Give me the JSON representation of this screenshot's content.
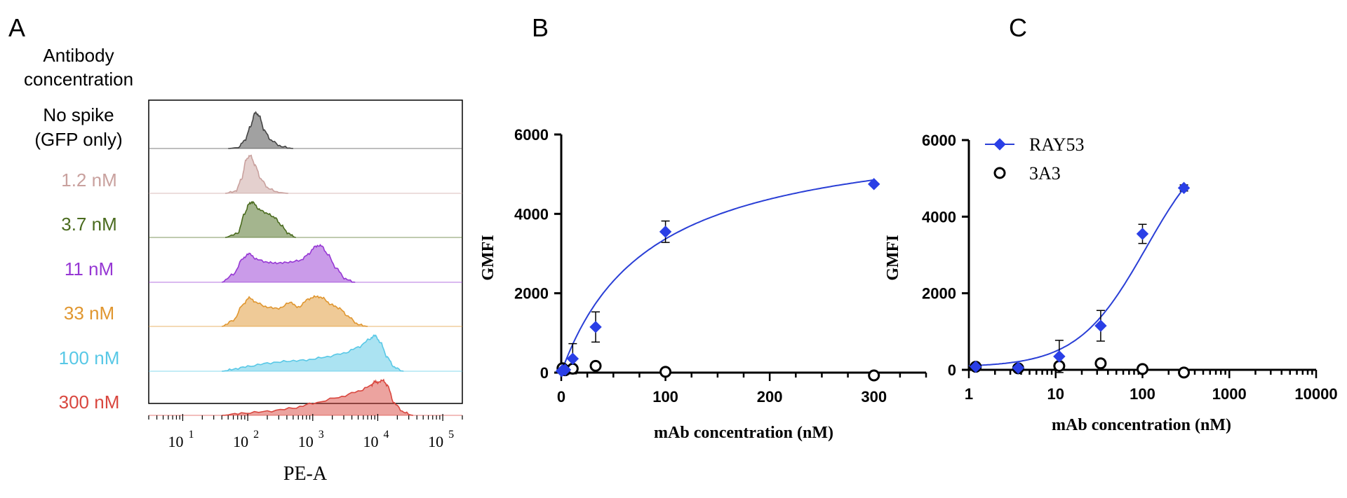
{
  "panel_labels": {
    "a": "A",
    "b": "B",
    "c": "C"
  },
  "colors": {
    "gfp": "#444444",
    "c1_2": "#c9a19e",
    "c3_7": "#4a6b1e",
    "c11": "#9637d4",
    "c33": "#e0962f",
    "c100": "#58c8e6",
    "c300": "#d9473f",
    "ray53": "#2a3fe6",
    "fit": "#2a3fd6",
    "axis": "#000000"
  },
  "chart_data": [
    {
      "panel": "A",
      "type": "area",
      "title": "",
      "row_header": "Antibody concentration",
      "xlabel": "PE-A",
      "x_scale": "log",
      "xlim": [
        3,
        200000
      ],
      "x_tick_labels": [
        {
          "base": "10",
          "exp": "1"
        },
        {
          "base": "10",
          "exp": "2"
        },
        {
          "base": "10",
          "exp": "3"
        },
        {
          "base": "10",
          "exp": "4"
        },
        {
          "base": "10",
          "exp": "5"
        }
      ],
      "series": [
        {
          "name": "No spike (GFP only)",
          "color_key": "gfp",
          "points": [
            [
              50,
              0
            ],
            [
              70,
              0.02
            ],
            [
              90,
              0.2
            ],
            [
              110,
              0.55
            ],
            [
              130,
              0.9
            ],
            [
              150,
              0.82
            ],
            [
              180,
              0.45
            ],
            [
              230,
              0.2
            ],
            [
              330,
              0.05
            ],
            [
              500,
              0
            ]
          ]
        },
        {
          "name": "1.2 nM",
          "color_key": "c1_2",
          "points": [
            [
              45,
              0
            ],
            [
              65,
              0.05
            ],
            [
              80,
              0.35
            ],
            [
              95,
              0.85
            ],
            [
              110,
              0.95
            ],
            [
              130,
              0.7
            ],
            [
              160,
              0.35
            ],
            [
              210,
              0.12
            ],
            [
              300,
              0.02
            ],
            [
              420,
              0
            ]
          ]
        },
        {
          "name": "3.7 nM",
          "color_key": "c3_7",
          "points": [
            [
              45,
              0
            ],
            [
              70,
              0.1
            ],
            [
              90,
              0.6
            ],
            [
              105,
              0.85
            ],
            [
              120,
              0.88
            ],
            [
              150,
              0.7
            ],
            [
              200,
              0.6
            ],
            [
              260,
              0.5
            ],
            [
              330,
              0.3
            ],
            [
              420,
              0.1
            ],
            [
              550,
              0
            ]
          ]
        },
        {
          "name": "11 nM",
          "color_key": "c11",
          "points": [
            [
              40,
              0
            ],
            [
              60,
              0.2
            ],
            [
              85,
              0.6
            ],
            [
              105,
              0.72
            ],
            [
              135,
              0.58
            ],
            [
              200,
              0.5
            ],
            [
              280,
              0.48
            ],
            [
              420,
              0.5
            ],
            [
              650,
              0.55
            ],
            [
              850,
              0.7
            ],
            [
              1100,
              0.9
            ],
            [
              1350,
              0.92
            ],
            [
              1700,
              0.7
            ],
            [
              2300,
              0.35
            ],
            [
              3200,
              0.08
            ],
            [
              4500,
              0
            ]
          ]
        },
        {
          "name": "33 nM",
          "color_key": "c33",
          "points": [
            [
              40,
              0
            ],
            [
              60,
              0.15
            ],
            [
              85,
              0.55
            ],
            [
              105,
              0.72
            ],
            [
              135,
              0.6
            ],
            [
              200,
              0.48
            ],
            [
              300,
              0.45
            ],
            [
              450,
              0.6
            ],
            [
              600,
              0.48
            ],
            [
              850,
              0.68
            ],
            [
              1100,
              0.75
            ],
            [
              1400,
              0.72
            ],
            [
              1900,
              0.55
            ],
            [
              2600,
              0.45
            ],
            [
              3500,
              0.25
            ],
            [
              5000,
              0.05
            ],
            [
              7000,
              0
            ]
          ]
        },
        {
          "name": "100 nM",
          "color_key": "c100",
          "points": [
            [
              40,
              0
            ],
            [
              60,
              0.05
            ],
            [
              100,
              0.12
            ],
            [
              200,
              0.2
            ],
            [
              400,
              0.25
            ],
            [
              800,
              0.28
            ],
            [
              1500,
              0.35
            ],
            [
              3000,
              0.45
            ],
            [
              5000,
              0.6
            ],
            [
              7500,
              0.8
            ],
            [
              9000,
              0.9
            ],
            [
              11000,
              0.72
            ],
            [
              14000,
              0.35
            ],
            [
              18000,
              0.1
            ],
            [
              25000,
              0
            ]
          ]
        },
        {
          "name": "300 nM",
          "color_key": "c300",
          "points": [
            [
              40,
              0
            ],
            [
              80,
              0.05
            ],
            [
              200,
              0.1
            ],
            [
              500,
              0.18
            ],
            [
              1000,
              0.3
            ],
            [
              2500,
              0.45
            ],
            [
              5000,
              0.6
            ],
            [
              8000,
              0.75
            ],
            [
              9000,
              0.85
            ],
            [
              10000,
              0.82
            ],
            [
              12000,
              0.88
            ],
            [
              14000,
              0.75
            ],
            [
              18000,
              0.3
            ],
            [
              25000,
              0.08
            ],
            [
              35000,
              0
            ]
          ]
        }
      ]
    },
    {
      "panel": "B",
      "type": "scatter",
      "xlabel": "mAb concentration (nM)",
      "ylabel": "GMFI",
      "xlim": [
        0,
        350
      ],
      "ylim": [
        0,
        6000
      ],
      "x_scale": "linear",
      "x_ticks": [
        0,
        100,
        200,
        300
      ],
      "y_ticks": [
        0,
        2000,
        4000,
        6000
      ],
      "series": [
        {
          "name": "RAY53",
          "marker": "diamond",
          "x": [
            0.4,
            1.2,
            3.7,
            11,
            33,
            100,
            300
          ],
          "y": [
            40,
            60,
            70,
            350,
            1150,
            3550,
            4750
          ],
          "yerr": [
            60,
            60,
            70,
            380,
            380,
            270,
            80
          ]
        },
        {
          "name": "3A3",
          "marker": "open-circle",
          "x": [
            1.2,
            3.7,
            11,
            33,
            100,
            300
          ],
          "y": [
            110,
            60,
            100,
            170,
            20,
            -70
          ]
        }
      ],
      "fit": {
        "series": "RAY53",
        "model": "hyperbolic",
        "bmax": 6230,
        "kd": 85
      }
    },
    {
      "panel": "C",
      "type": "scatter",
      "xlabel": "mAb concentration (nM)",
      "ylabel": "GMFI",
      "xlim": [
        1,
        10000
      ],
      "ylim": [
        0,
        6000
      ],
      "x_scale": "log",
      "x_ticks": [
        1,
        10,
        100,
        1000,
        10000
      ],
      "y_ticks": [
        0,
        2000,
        4000,
        6000
      ],
      "legend_position": "top-left",
      "series": [
        {
          "name": "RAY53",
          "marker": "diamond",
          "x": [
            1.2,
            3.7,
            11,
            33,
            100,
            300
          ],
          "y": [
            80,
            50,
            350,
            1150,
            3550,
            4750
          ],
          "yerr": [
            90,
            60,
            420,
            400,
            250,
            80
          ]
        },
        {
          "name": "3A3",
          "marker": "open-circle",
          "x": [
            1.2,
            3.7,
            11,
            33,
            100,
            300
          ],
          "y": [
            80,
            40,
            100,
            170,
            20,
            -70
          ]
        }
      ],
      "fit": {
        "series": "RAY53",
        "model": "sigmoid",
        "bottom": 70,
        "top": 6300,
        "ec50": 110,
        "hill": 1.1
      }
    }
  ]
}
